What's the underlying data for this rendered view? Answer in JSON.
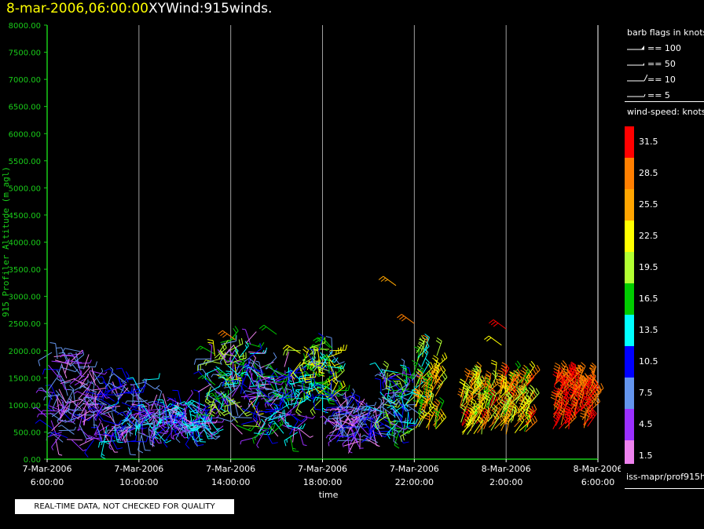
{
  "header": {
    "date": "8-mar-2006,06:00:00",
    "title": "XYWind:915winds."
  },
  "footer_note": "REAL-TIME DATA, NOT CHECKED FOR QUALITY",
  "source_path": "iss-mapr/prof915h",
  "barb_legend": {
    "title": "barb flags in knots",
    "entries": [
      {
        "label": "== 100",
        "icon": "pennant-barb-icon"
      },
      {
        "label": "== 50",
        "icon": "half-pennant-barb-icon"
      },
      {
        "label": "== 10",
        "icon": "full-barb-icon"
      },
      {
        "label": "== 5",
        "icon": "half-barb-icon"
      }
    ]
  },
  "colorbar": {
    "title": "wind-speed: knots",
    "levels": [
      {
        "label": "31.5",
        "color": "#ff0000"
      },
      {
        "label": "28.5",
        "color": "#ff7f00"
      },
      {
        "label": "25.5",
        "color": "#ffa500"
      },
      {
        "label": "22.5",
        "color": "#ffff00"
      },
      {
        "label": "19.5",
        "color": "#b2ff32"
      },
      {
        "label": "16.5",
        "color": "#00cc00"
      },
      {
        "label": "13.5",
        "color": "#00ffff"
      },
      {
        "label": "10.5",
        "color": "#0000ff"
      },
      {
        "label": "7.5",
        "color": "#6495ed"
      },
      {
        "label": "4.5",
        "color": "#9b30ff"
      },
      {
        "label": "1.5",
        "color": "#ee82ee"
      }
    ]
  },
  "chart_data": {
    "type": "scatter",
    "title": "XYWind:915winds.",
    "xlabel": "time",
    "ylabel": "915 Profiler Altitude (m agl)",
    "ylim": [
      0,
      8000
    ],
    "yticks": [
      "0.00",
      "500.00",
      "1000.00",
      "1500.00",
      "2000.00",
      "2500.00",
      "3000.00",
      "3500.00",
      "4000.00",
      "4500.00",
      "5000.00",
      "5500.00",
      "6000.00",
      "6500.00",
      "7000.00",
      "7500.00",
      "8000.00"
    ],
    "ytick_values": [
      0,
      500,
      1000,
      1500,
      2000,
      2500,
      3000,
      3500,
      4000,
      4500,
      5000,
      5500,
      6000,
      6500,
      7000,
      7500,
      8000
    ],
    "xlim_hours": [
      0,
      24
    ],
    "xticks": [
      {
        "date": "7-Mar-2006",
        "time": "6:00:00",
        "hours": 0
      },
      {
        "date": "7-Mar-2006",
        "time": "10:00:00",
        "hours": 4
      },
      {
        "date": "7-Mar-2006",
        "time": "14:00:00",
        "hours": 8
      },
      {
        "date": "7-Mar-2006",
        "time": "18:00:00",
        "hours": 12
      },
      {
        "date": "7-Mar-2006",
        "time": "22:00:00",
        "hours": 16
      },
      {
        "date": "8-Mar-2006",
        "time": "2:00:00",
        "hours": 20
      },
      {
        "date": "8-Mar-2006",
        "time": "6:00:00",
        "hours": 24
      }
    ],
    "grid": "vertical",
    "axis_color": "#19cc19",
    "grid_color": "#a0a0a0",
    "wind_clusters": [
      {
        "hour_start": 0.0,
        "hour_end": 2.0,
        "alt_min": 300,
        "alt_max": 2000,
        "speed": 5,
        "spread": 5
      },
      {
        "hour_start": 2.0,
        "hour_end": 4.2,
        "alt_min": 300,
        "alt_max": 1500,
        "speed": 7,
        "spread": 6
      },
      {
        "hour_start": 4.2,
        "hour_end": 7.0,
        "alt_min": 500,
        "alt_max": 1000,
        "speed": 8,
        "spread": 7
      },
      {
        "hour_start": 7.0,
        "hour_end": 9.0,
        "alt_min": 600,
        "alt_max": 2200,
        "speed": 12,
        "spread": 10
      },
      {
        "hour_start": 9.0,
        "hour_end": 11.0,
        "alt_min": 400,
        "alt_max": 1700,
        "speed": 9,
        "spread": 8
      },
      {
        "hour_start": 11.0,
        "hour_end": 12.5,
        "alt_min": 1000,
        "alt_max": 2100,
        "speed": 15,
        "spread": 8
      },
      {
        "hour_start": 12.5,
        "hour_end": 14.5,
        "alt_min": 300,
        "alt_max": 1000,
        "speed": 6,
        "spread": 6
      },
      {
        "hour_start": 14.5,
        "hour_end": 16.0,
        "alt_min": 500,
        "alt_max": 1600,
        "speed": 12,
        "spread": 8
      },
      {
        "hour_start": 16.0,
        "hour_end": 17.0,
        "alt_min": 500,
        "alt_max": 2000,
        "speed": 22,
        "spread": 8
      },
      {
        "hour_start": 18.0,
        "hour_end": 21.0,
        "alt_min": 450,
        "alt_max": 1500,
        "speed": 24,
        "spread": 7
      },
      {
        "hour_start": 22.0,
        "hour_end": 23.8,
        "alt_min": 550,
        "alt_max": 1500,
        "speed": 30,
        "spread": 3
      }
    ],
    "isolated_barbs": [
      {
        "hour": 15.2,
        "alt": 3200,
        "speed": 27
      },
      {
        "hour": 16.0,
        "alt": 2500,
        "speed": 28
      },
      {
        "hour": 20.0,
        "alt": 2400,
        "speed": 31
      },
      {
        "hour": 19.8,
        "alt": 2100,
        "speed": 22
      },
      {
        "hour": 10.0,
        "alt": 2300,
        "speed": 18
      },
      {
        "hour": 8.2,
        "alt": 2200,
        "speed": 30
      }
    ]
  }
}
